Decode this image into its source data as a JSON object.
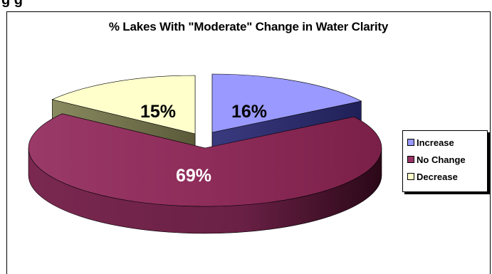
{
  "page": {
    "cut_off_heading": "g           g"
  },
  "chart_data": {
    "type": "pie",
    "title": "% Lakes With \"Moderate\" Change in Water Clarity",
    "slices": [
      {
        "label": "Increase",
        "value": 16,
        "display": "16%",
        "color": "#9999ff"
      },
      {
        "label": "No Change",
        "value": 69,
        "display": "69%",
        "color": "#993366"
      },
      {
        "label": "Decrease",
        "value": 15,
        "display": "15%",
        "color": "#ffffcc"
      }
    ],
    "legend": {
      "placement": "right",
      "items": [
        "Increase",
        "No Change",
        "Decrease"
      ]
    },
    "style": "3d-exploded"
  }
}
